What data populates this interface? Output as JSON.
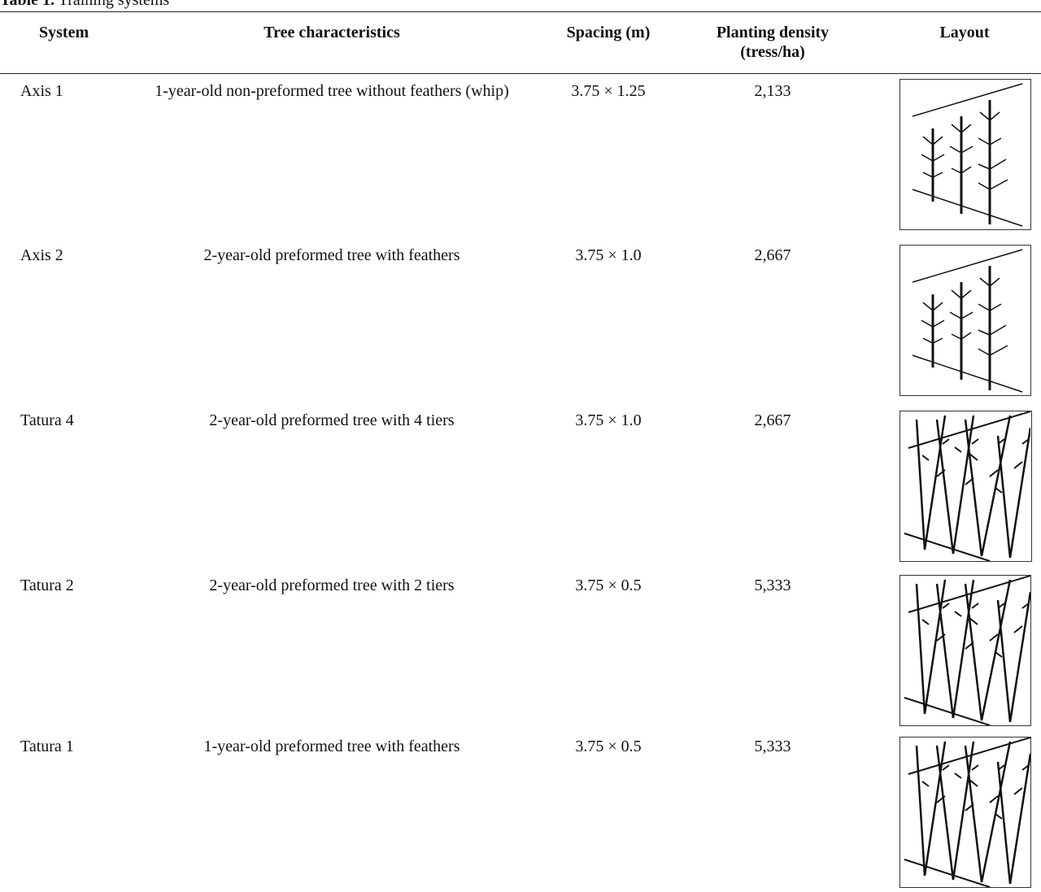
{
  "caption": {
    "label": "Table 1.",
    "title": "Training systems"
  },
  "table": {
    "header": [
      "System",
      "Tree characteristics",
      "Spacing (m)",
      "Planting density (tress/ha)",
      "Layout"
    ],
    "rows": [
      [
        "Axis 1",
        "1-year-old non-preformed tree without feathers (whip)",
        "3.75 × 1.25",
        "2,133"
      ],
      [
        "Axis 2",
        "2-year-old preformed tree with feathers",
        "3.75 × 1.0",
        "2,667"
      ],
      [
        "Tatura 4",
        "2-year-old preformed tree with 4 tiers",
        "3.75 × 1.0",
        "2,667"
      ],
      [
        "Tatura 2",
        "2-year-old preformed tree with 2 tiers",
        "3.75 × 0.5",
        "5,333"
      ],
      [
        "Tatura 1",
        "1-year-old preformed tree with feathers",
        "3.75 × 0.5",
        "5,333"
      ]
    ]
  }
}
